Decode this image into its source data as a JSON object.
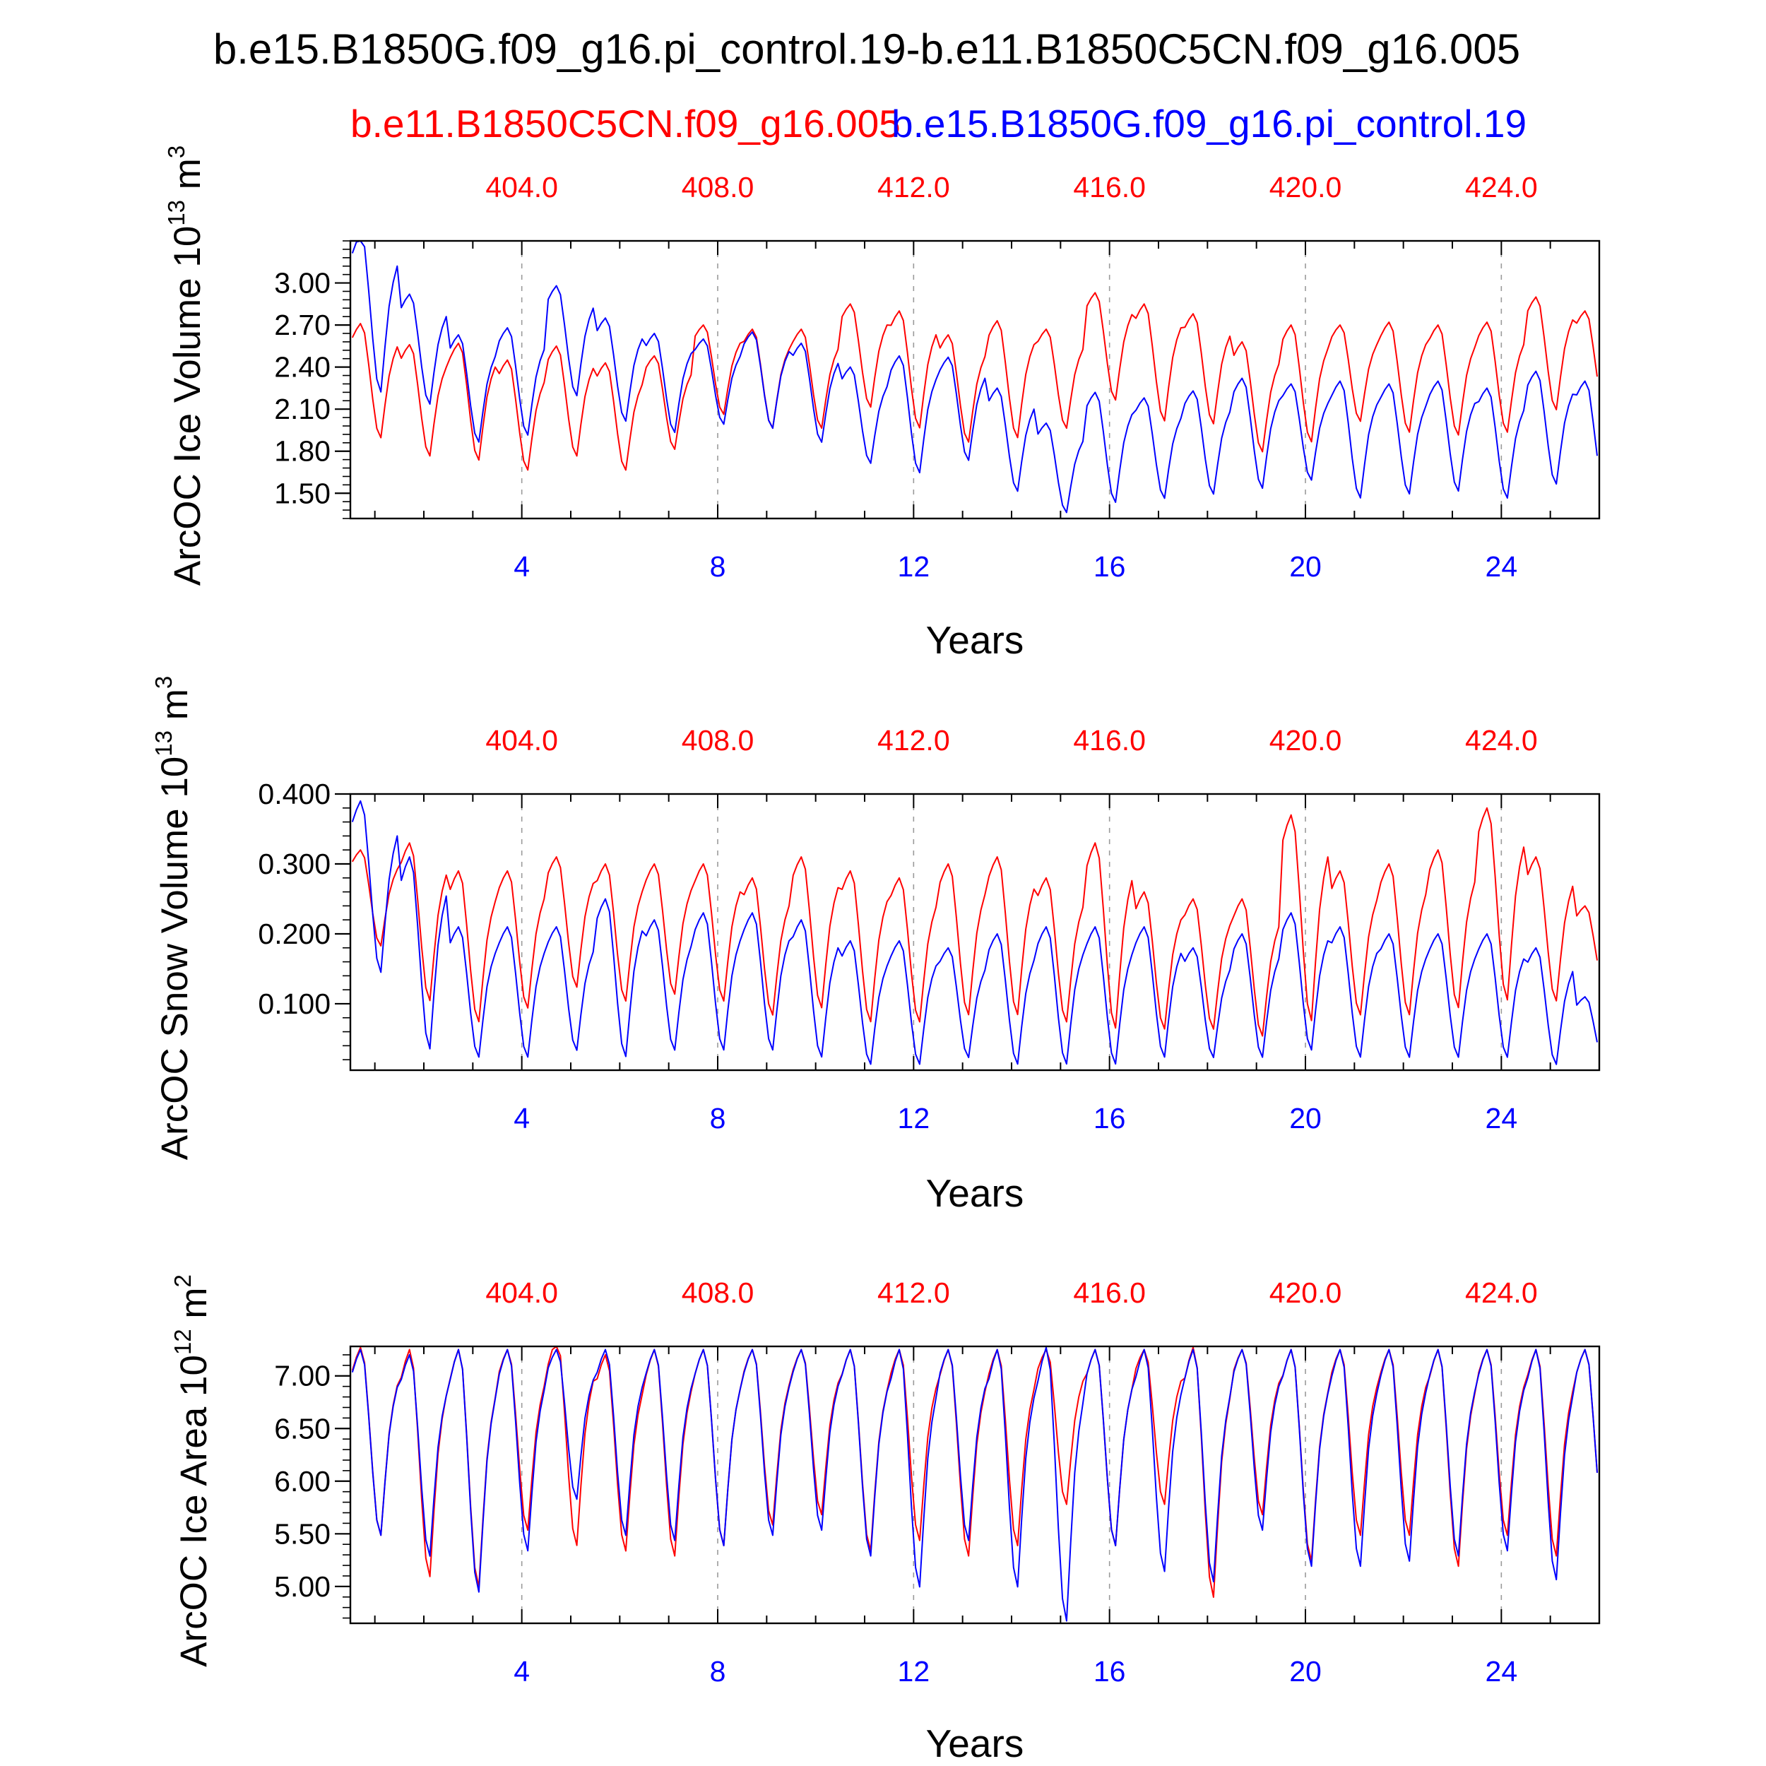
{
  "chart_data": {
    "type": "line",
    "title": "b.e15.B1850G.f09_g16.pi_control.19-b.e11.B1850C5CN.f09_g16.005",
    "legend": {
      "position": "top",
      "entries": [
        {
          "name": "b.e11.B1850C5CN.f09_g16.005",
          "color": "#ff0000"
        },
        {
          "name": "b.e15.B1850G.f09_g16.pi_control.19",
          "color": "#0000ff"
        }
      ]
    },
    "colors": {
      "series_a": "#ff0000",
      "series_b": "#0000ff",
      "axis": "#000000",
      "grid": "#9a9a9a"
    },
    "xlim": [
      0.5,
      26.0
    ],
    "x_bottom_ticks": [
      4,
      8,
      12,
      16,
      20,
      24
    ],
    "x_bottom_tick_labels": [
      "4",
      "8",
      "12",
      "16",
      "20",
      "24"
    ],
    "x_top_tick_labels": [
      "404.0",
      "408.0",
      "412.0",
      "416.0",
      "420.0",
      "424.0"
    ],
    "xlabel": "Years",
    "panels": [
      {
        "id": "ice-volume",
        "ylabel_main": "ArcOC Ice Volume 10",
        "ylabel_exp": "13",
        "ylabel_unit": " m",
        "ylabel_unit_exp": "3",
        "ylim": [
          1.32,
          3.3
        ],
        "yticks": [
          1.5,
          1.8,
          2.1,
          2.4,
          2.7,
          3.0
        ],
        "ytick_labels": [
          "1.50",
          "1.80",
          "2.10",
          "2.40",
          "2.70",
          "3.00"
        ],
        "series": [
          {
            "name": "b.e11.B1850C5CN.f09_g16.005",
            "color": "#ff0000",
            "amplitude": [
              0.83,
              0.81,
              0.85,
              0.8,
              0.8,
              0.78,
              0.68,
              0.65,
              0.72,
              0.72,
              0.75,
              0.85,
              0.78,
              0.85,
              0.72,
              0.78,
              0.85,
              0.8,
              0.8,
              0.85,
              0.7,
              0.8,
              0.8,
              0.8,
              0.82,
              0.72
            ],
            "minimum": [
              1.88,
              1.75,
              1.72,
              1.65,
              1.75,
              1.65,
              1.8,
              2.05,
              1.95,
              1.95,
              2.1,
              1.95,
              1.85,
              1.88,
              1.95,
              2.15,
              2.0,
              1.98,
              1.78,
              1.85,
              2.0,
              1.92,
              1.9,
              1.92,
              2.08,
              2.08
            ]
          },
          {
            "name": "b.e15.B1850G.f09_g16.pi_control.19",
            "color": "#0000ff",
            "amplitude": [
              1.15,
              0.8,
              0.78,
              0.78,
              0.8,
              0.75,
              0.72,
              0.62,
              0.7,
              0.72,
              0.7,
              0.85,
              0.75,
              0.75,
              0.65,
              0.8,
              0.73,
              0.75,
              0.8,
              0.7,
              0.85,
              0.8,
              0.8,
              0.8,
              0.82,
              0.82
            ],
            "minimum": [
              2.2,
              2.12,
              1.85,
              1.9,
              2.18,
              2.0,
              1.92,
              1.98,
              1.95,
              1.85,
              1.7,
              1.63,
              1.72,
              1.5,
              1.35,
              1.42,
              1.45,
              1.48,
              1.52,
              1.58,
              1.45,
              1.48,
              1.5,
              1.45,
              1.55,
              1.48
            ]
          }
        ]
      },
      {
        "id": "snow-volume",
        "ylabel_main": "ArcOC Snow Volume 10",
        "ylabel_exp": "13",
        "ylabel_unit": " m",
        "ylabel_unit_exp": "3",
        "ylim": [
          0.005,
          0.4
        ],
        "yticks": [
          0.1,
          0.2,
          0.3,
          0.4
        ],
        "ytick_labels": [
          "0.100",
          "0.200",
          "0.300",
          "0.400"
        ],
        "series": [
          {
            "name": "b.e11.B1850C5CN.f09_g16.005",
            "color": "#ff0000",
            "amplitude": [
              0.14,
              0.23,
              0.22,
              0.2,
              0.19,
              0.2,
              0.19,
              0.2,
              0.2,
              0.22,
              0.22,
              0.21,
              0.22,
              0.23,
              0.21,
              0.27,
              0.2,
              0.19,
              0.2,
              0.3,
              0.21,
              0.22,
              0.23,
              0.28,
              0.21,
              0.12
            ],
            "minimum": [
              0.18,
              0.1,
              0.07,
              0.09,
              0.12,
              0.1,
              0.11,
              0.1,
              0.08,
              0.09,
              0.07,
              0.07,
              0.08,
              0.08,
              0.07,
              0.06,
              0.06,
              0.06,
              0.05,
              0.07,
              0.08,
              0.08,
              0.09,
              0.1,
              0.1,
              0.12
            ]
          },
          {
            "name": "b.e15.B1850G.f09_g16.pi_control.19",
            "color": "#0000ff",
            "amplitude": [
              0.25,
              0.28,
              0.19,
              0.19,
              0.18,
              0.23,
              0.19,
              0.2,
              0.2,
              0.2,
              0.18,
              0.18,
              0.16,
              0.19,
              0.2,
              0.2,
              0.19,
              0.16,
              0.18,
              0.2,
              0.19,
              0.18,
              0.18,
              0.18,
              0.17,
              0.1
            ],
            "minimum": [
              0.14,
              0.03,
              0.02,
              0.02,
              0.03,
              0.02,
              0.03,
              0.03,
              0.03,
              0.02,
              0.01,
              0.01,
              0.02,
              0.01,
              0.01,
              0.01,
              0.02,
              0.02,
              0.02,
              0.03,
              0.02,
              0.02,
              0.02,
              0.02,
              0.01,
              0.01
            ]
          }
        ]
      },
      {
        "id": "ice-area",
        "ylabel_main": "ArcOC Ice Area 10",
        "ylabel_exp": "12",
        "ylabel_unit": " m",
        "ylabel_unit_exp": "2",
        "ylim": [
          4.65,
          7.28
        ],
        "yticks": [
          5.0,
          5.5,
          6.0,
          6.5,
          7.0
        ],
        "ytick_labels": [
          "5.00",
          "5.50",
          "6.00",
          "6.50",
          "7.00"
        ],
        "series": [
          {
            "name": "b.e11.B1850C5CN.f09_g16.005",
            "color": "#ff0000",
            "amplitude": [
              1.82,
              2.2,
              2.3,
              1.75,
              2.0,
              1.9,
              2.0,
              1.9,
              1.7,
              1.6,
              1.95,
              1.85,
              2.0,
              1.9,
              1.5,
              1.9,
              1.5,
              2.42,
              1.6,
              2.05,
              1.8,
              1.8,
              2.1,
              1.8,
              2.0,
              1.8
            ],
            "minimum": [
              5.45,
              5.05,
              4.95,
              5.5,
              5.35,
              5.3,
              5.25,
              5.35,
              5.55,
              5.65,
              5.3,
              5.4,
              5.25,
              5.35,
              5.75,
              5.35,
              5.75,
              4.85,
              5.65,
              5.2,
              5.45,
              5.45,
              5.15,
              5.45,
              5.25,
              5.45
            ]
          },
          {
            "name": "b.e15.B1850G.f09_g16.pi_control.19",
            "color": "#0000ff",
            "amplitude": [
              1.8,
              1.95,
              2.35,
              1.95,
              1.45,
              1.8,
              1.85,
              1.9,
              1.8,
              1.75,
              2.0,
              2.3,
              1.85,
              2.3,
              2.65,
              1.9,
              2.15,
              2.25,
              1.75,
              2.1,
              2.1,
              2.05,
              2.0,
              1.95,
              2.23,
              1.8
            ],
            "minimum": [
              5.45,
              5.25,
              4.9,
              5.3,
              5.8,
              5.45,
              5.4,
              5.35,
              5.45,
              5.5,
              5.25,
              4.95,
              5.4,
              4.95,
              4.62,
              5.35,
              5.1,
              5.0,
              5.5,
              5.15,
              5.15,
              5.2,
              5.25,
              5.3,
              5.02,
              5.45
            ]
          }
        ]
      }
    ]
  }
}
